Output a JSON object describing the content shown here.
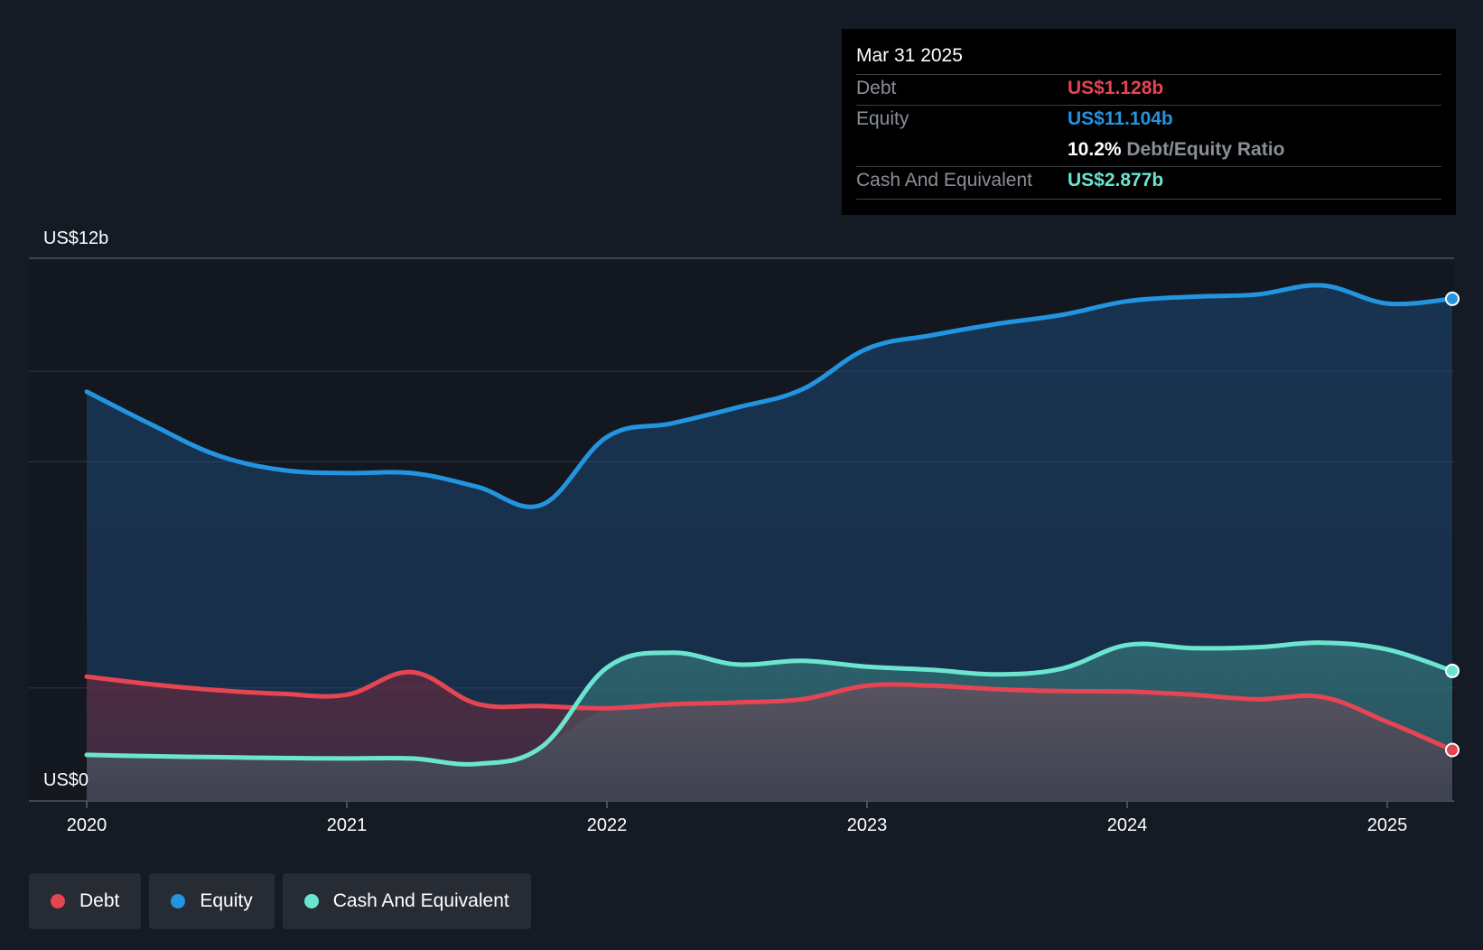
{
  "colors": {
    "debt": "#e64553",
    "equity": "#2394df",
    "cash": "#6ce5d0",
    "background": "#151b24"
  },
  "tooltip": {
    "date": "Mar 31 2025",
    "debt_label": "Debt",
    "debt_value": "US$1.128b",
    "equity_label": "Equity",
    "equity_value": "US$11.104b",
    "ratio_value": "10.2%",
    "ratio_label": "Debt/Equity Ratio",
    "cash_label": "Cash And Equivalent",
    "cash_value": "US$2.877b"
  },
  "legend": [
    {
      "label": "Debt",
      "color": "#e64553"
    },
    {
      "label": "Equity",
      "color": "#2394df"
    },
    {
      "label": "Cash And Equivalent",
      "color": "#6ce5d0"
    }
  ],
  "chart_data": {
    "type": "area",
    "title": "",
    "xlabel": "",
    "ylabel": "",
    "x_ticks": [
      "2020",
      "2021",
      "2022",
      "2023",
      "2024",
      "2025"
    ],
    "y_top_label": "US$12b",
    "y_bottom_label": "US$0",
    "ylim": [
      0,
      12
    ],
    "xlim": [
      2020.0,
      2025.25
    ],
    "x": [
      2020.0,
      2020.25,
      2020.5,
      2020.75,
      2021.0,
      2021.25,
      2021.5,
      2021.75,
      2022.0,
      2022.25,
      2022.5,
      2022.75,
      2023.0,
      2023.25,
      2023.5,
      2023.75,
      2024.0,
      2024.25,
      2024.5,
      2024.75,
      2025.0,
      2025.25
    ],
    "series": [
      {
        "name": "Equity",
        "values": [
          9.05,
          8.32,
          7.65,
          7.32,
          7.25,
          7.25,
          6.95,
          6.55,
          8.05,
          8.35,
          8.7,
          9.1,
          10.0,
          10.3,
          10.55,
          10.75,
          11.05,
          11.15,
          11.2,
          11.4,
          11.0,
          11.104
        ]
      },
      {
        "name": "Cash And Equivalent",
        "values": [
          1.02,
          0.99,
          0.97,
          0.95,
          0.94,
          0.94,
          0.82,
          1.2,
          2.95,
          3.28,
          3.02,
          3.1,
          2.97,
          2.9,
          2.8,
          2.93,
          3.45,
          3.38,
          3.4,
          3.5,
          3.35,
          2.877
        ]
      },
      {
        "name": "Debt",
        "values": [
          2.75,
          2.58,
          2.45,
          2.37,
          2.35,
          2.85,
          2.15,
          2.1,
          2.05,
          2.14,
          2.18,
          2.25,
          2.55,
          2.55,
          2.47,
          2.43,
          2.42,
          2.35,
          2.25,
          2.3,
          1.75,
          1.128
        ]
      }
    ],
    "gridlines_y": [
      2.5,
      7.5,
      9.5,
      12
    ],
    "highlight_date": "Mar 31 2025"
  }
}
